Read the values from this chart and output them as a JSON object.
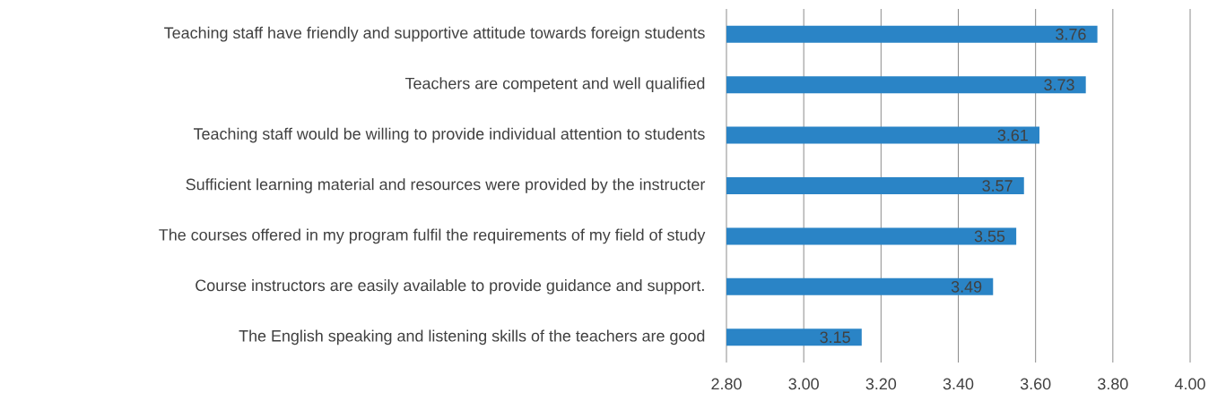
{
  "chart_data": {
    "type": "bar",
    "orientation": "horizontal",
    "categories": [
      "Teaching staff have friendly and supportive attitude towards foreign students",
      "Teachers are competent and well qualified",
      "Teaching staff would be willing to provide individual attention to students",
      "Sufficient learning material and resources were provided by the instructer",
      "The courses offered in my program fulfil the requirements of my field of study",
      "Course instructors are easily available to provide guidance and support.",
      "The English speaking and listening skills of the teachers are good"
    ],
    "values": [
      3.76,
      3.73,
      3.61,
      3.57,
      3.55,
      3.49,
      3.15
    ],
    "color": "#2a84c6",
    "xlim": [
      2.8,
      4.0
    ],
    "xticks": [
      {
        "value": 2.8,
        "label": "2.80"
      },
      {
        "value": 3.0,
        "label": "3.00"
      },
      {
        "value": 3.2,
        "label": "3.20"
      },
      {
        "value": 3.4,
        "label": "3.40"
      },
      {
        "value": 3.6,
        "label": "3.60"
      },
      {
        "value": 3.8,
        "label": "3.80"
      },
      {
        "value": 4.0,
        "label": "4.00"
      }
    ],
    "grid": "x",
    "data_labels": true
  }
}
